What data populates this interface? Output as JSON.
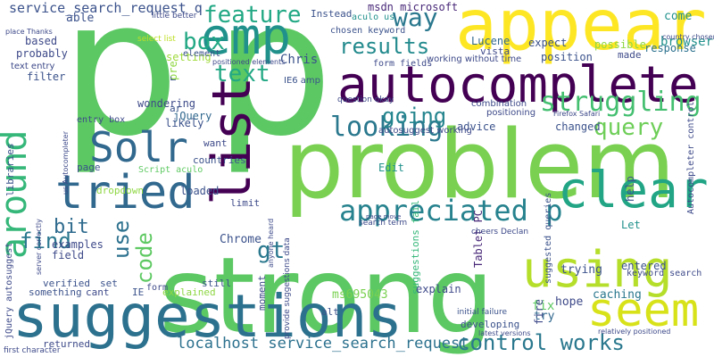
{
  "cloud": {
    "background": "#ffffff",
    "words": [
      {
        "text": "p",
        "color": "#5cc863"
      },
      {
        "text": "p",
        "color": "#5cc863"
      },
      {
        "text": "strong",
        "color": "#5cc863"
      },
      {
        "text": "problem",
        "color": "#7ad151"
      },
      {
        "text": "suggestions",
        "color": "#2c718e"
      },
      {
        "text": "appear",
        "color": "#fde725"
      },
      {
        "text": "autocomplete",
        "color": "#440154"
      },
      {
        "text": "emp",
        "color": "#21918c"
      },
      {
        "text": "list",
        "color": "#440154"
      },
      {
        "text": "around",
        "color": "#35b779"
      },
      {
        "text": "tried",
        "color": "#31688e"
      },
      {
        "text": "Solr",
        "color": "#31688e"
      },
      {
        "text": "clear",
        "color": "#21a585"
      },
      {
        "text": "using",
        "color": "#b5de2b"
      },
      {
        "text": "seem",
        "color": "#d8e219"
      },
      {
        "text": "appreciated p",
        "color": "#26828e"
      },
      {
        "text": "control works",
        "color": "#2a788e"
      },
      {
        "text": "looking",
        "color": "#2a788e"
      },
      {
        "text": "results",
        "color": "#238a8d"
      },
      {
        "text": "going",
        "color": "#25858e"
      },
      {
        "text": "struggling",
        "color": "#44bf70"
      },
      {
        "text": "query",
        "color": "#6ece58"
      },
      {
        "text": "feature",
        "color": "#22a884"
      },
      {
        "text": "box",
        "color": "#22a884"
      },
      {
        "text": "way",
        "color": "#2a788e"
      },
      {
        "text": "text",
        "color": "#22a884"
      },
      {
        "text": "gt",
        "color": "#2a788e"
      },
      {
        "text": "code",
        "color": "#5ec962"
      },
      {
        "text": "use",
        "color": "#2c718e"
      },
      {
        "text": "find",
        "color": "#2a788e"
      },
      {
        "text": "bit",
        "color": "#2f6b8e"
      },
      {
        "text": "service_search_request q",
        "color": "#3b528b"
      },
      {
        "text": "localhost service_search_request",
        "color": "#2c718e"
      },
      {
        "text": "Chris",
        "color": "#3b528b"
      },
      {
        "text": "jQuery",
        "color": "#31688e"
      },
      {
        "text": "IE6 amp",
        "color": "#3b528b"
      },
      {
        "text": "Chrome",
        "color": "#3b528b"
      },
      {
        "text": "ms695043",
        "color": "#7ad151"
      },
      {
        "text": "Tablet PC",
        "color": "#482878"
      },
      {
        "text": "suggestions fail",
        "color": "#35b779"
      },
      {
        "text": "explain",
        "color": "#3e4a89"
      },
      {
        "text": "fix",
        "color": "#5ec962"
      },
      {
        "text": "try",
        "color": "#31688e"
      },
      {
        "text": "fire",
        "color": "#3e4a89"
      },
      {
        "text": "hope",
        "color": "#3e4a89"
      },
      {
        "text": "caching",
        "color": "#2a788e"
      },
      {
        "text": "trying",
        "color": "#3b528b"
      },
      {
        "text": "entered",
        "color": "#3b528b"
      },
      {
        "text": "Edit",
        "color": "#21918c"
      },
      {
        "text": "advice",
        "color": "#3b528b"
      },
      {
        "text": "changed",
        "color": "#3b528b"
      },
      {
        "text": "help",
        "color": "#3b528b"
      },
      {
        "text": "Let",
        "color": "#21918c"
      },
      {
        "text": "position",
        "color": "#3b528b"
      },
      {
        "text": "expect",
        "color": "#3b528b"
      },
      {
        "text": "possible",
        "color": "#8fd744"
      },
      {
        "text": "browsers",
        "color": "#21918c"
      },
      {
        "text": "come",
        "color": "#21918c"
      },
      {
        "text": "made",
        "color": "#3e4a89"
      },
      {
        "text": "response",
        "color": "#2c718e"
      },
      {
        "text": "Lucene",
        "color": "#31688e"
      },
      {
        "text": "vista",
        "color": "#3e4a89"
      },
      {
        "text": "working without time",
        "color": "#3e4a89"
      },
      {
        "text": "chosen keyword",
        "color": "#3b528b"
      },
      {
        "text": "form fields",
        "color": "#3e4a89"
      },
      {
        "text": "Instead",
        "color": "#3b528b"
      },
      {
        "text": "msdn microsoft",
        "color": "#482878"
      },
      {
        "text": "aculo us",
        "color": "#21918c"
      },
      {
        "text": "able",
        "color": "#3b528b"
      },
      {
        "text": "based",
        "color": "#3e4a89"
      },
      {
        "text": "probably",
        "color": "#3e4a89"
      },
      {
        "text": "text entry",
        "color": "#3e4a89"
      },
      {
        "text": "filter",
        "color": "#3b528b"
      },
      {
        "text": "setting",
        "color": "#9fda3a"
      },
      {
        "text": "pre",
        "color": "#8fd744"
      },
      {
        "text": "wondering",
        "color": "#3e4a89"
      },
      {
        "text": "element",
        "color": "#3b528b"
      },
      {
        "text": "likely",
        "color": "#3b528b"
      },
      {
        "text": "want",
        "color": "#3e4a89"
      },
      {
        "text": "countries",
        "color": "#3b528b"
      },
      {
        "text": "page",
        "color": "#3b528b"
      },
      {
        "text": "Script aculo",
        "color": "#5ec962"
      },
      {
        "text": "loaded",
        "color": "#3b528b"
      },
      {
        "text": "limit",
        "color": "#3e4a89"
      },
      {
        "text": "dropdown",
        "color": "#8fd744"
      },
      {
        "text": "examples",
        "color": "#3e4a89"
      },
      {
        "text": "field",
        "color": "#3e4a89"
      },
      {
        "text": "verified",
        "color": "#3b528b"
      },
      {
        "text": "something",
        "color": "#3b528b"
      },
      {
        "text": "cant",
        "color": "#3e4a89"
      },
      {
        "text": "IE",
        "color": "#3b528b"
      },
      {
        "text": "form",
        "color": "#3e4a89"
      },
      {
        "text": "set",
        "color": "#3b528b"
      },
      {
        "text": "still",
        "color": "#3b528b"
      },
      {
        "text": "explained",
        "color": "#8fd744"
      },
      {
        "text": "moment",
        "color": "#3e4a89"
      },
      {
        "text": "alt",
        "color": "#3b528b"
      },
      {
        "text": "developing",
        "color": "#3b528b"
      },
      {
        "text": "returned",
        "color": "#3e4a89"
      },
      {
        "text": "libraries",
        "color": "#3b528b"
      },
      {
        "text": "jQuery autosuggest",
        "color": "#3e4a89"
      },
      {
        "text": "entry box",
        "color": "#3e4a89"
      },
      {
        "text": "keyword search",
        "color": "#3e4a89"
      },
      {
        "text": "suggested queries",
        "color": "#3b528b"
      },
      {
        "text": "Autocompleter control",
        "color": "#3e4a89"
      },
      {
        "text": "search term",
        "color": "#3e4a89"
      },
      {
        "text": "cheers Declan",
        "color": "#3e4a89"
      },
      {
        "text": "autosuggest working",
        "color": "#3e4a89"
      },
      {
        "text": "question okay",
        "color": "#3e4a89"
      },
      {
        "text": "positioning",
        "color": "#3e4a89"
      },
      {
        "text": "combination",
        "color": "#3e4a89"
      },
      {
        "text": "select list",
        "color": "#bddf26"
      },
      {
        "text": "little better",
        "color": "#3e4a89"
      },
      {
        "text": "initial failure",
        "color": "#3b528b"
      },
      {
        "text": "first character",
        "color": "#3e4a89"
      },
      {
        "text": "latest versions",
        "color": "#3e4a89"
      },
      {
        "text": "relatively positioned",
        "color": "#3e4a89"
      },
      {
        "text": "country chosen",
        "color": "#3e4a89"
      },
      {
        "text": "Firefox Safari",
        "color": "#3e4a89"
      },
      {
        "text": "positioned elements",
        "color": "#3e4a89"
      },
      {
        "text": "place Thanks",
        "color": "#3e4a89"
      },
      {
        "text": "provide suggestions data",
        "color": "#3e4a89"
      },
      {
        "text": "server correctly",
        "color": "#3e4a89"
      },
      {
        "text": "us Autocompleter",
        "color": "#3e4a89"
      },
      {
        "text": "anyone heard",
        "color": "#3e4a89"
      },
      {
        "text": "page move",
        "color": "#3e4a89"
      },
      {
        "text": "ar",
        "color": "#3b528b"
      },
      {
        "text": "r",
        "color": "#3b528b"
      }
    ]
  }
}
